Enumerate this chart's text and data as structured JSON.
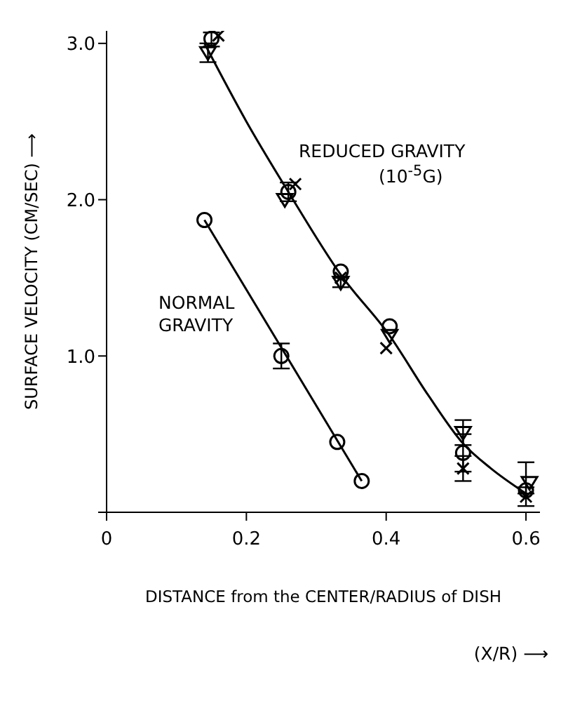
{
  "chart_data": {
    "type": "scatter",
    "xlabel": "DISTANCE from the CENTER/RADIUS of DISH",
    "ylabel": "SURFACE VELOCITY (CM/SEC) ⟶",
    "xlim": [
      0,
      0.62
    ],
    "xticks": [
      0,
      0.2,
      0.4,
      0.6
    ],
    "ylim": [
      0,
      3.08
    ],
    "yticks": [
      {
        "value": 0,
        "label": null
      },
      {
        "value": 1,
        "label": "1.0"
      },
      {
        "value": 2,
        "label": "2.0"
      },
      {
        "value": 3,
        "label": "3.0"
      }
    ],
    "series": [
      {
        "type": "line",
        "color": "#000000",
        "marker": "none",
        "x": [
          0.14,
          0.2,
          0.26,
          0.335,
          0.405,
          0.46,
          0.51,
          0.55,
          0.6
        ],
        "values": [
          3.0,
          2.5,
          2.05,
          1.52,
          1.13,
          0.75,
          0.44,
          0.28,
          0.12
        ]
      },
      {
        "type": "line",
        "color": "#000000",
        "marker": "none",
        "x": [
          0.14,
          0.365
        ],
        "values": [
          1.87,
          0.2
        ]
      },
      {
        "color": "#000000",
        "marker": "circle",
        "x": [
          0.15,
          0.26,
          0.335,
          0.405,
          0.51,
          0.6
        ],
        "values": [
          3.03,
          2.05,
          1.54,
          1.19,
          0.38,
          0.14
        ],
        "errors": [
          [
            2.98,
            3.07
          ],
          0.06,
          null,
          null,
          0.12,
          [
            0.12,
            0.32
          ]
        ]
      },
      {
        "color": "#000000",
        "marker": "triangle",
        "x": [
          0.145,
          0.255,
          0.335,
          0.405,
          0.51,
          0.605
        ],
        "values": [
          2.94,
          2.0,
          1.47,
          1.13,
          0.51,
          0.19
        ],
        "errors": [
          0.06,
          null,
          0.03,
          null,
          0.08,
          null
        ]
      },
      {
        "color": "#000000",
        "marker": "cross",
        "x": [
          0.16,
          0.27,
          0.335,
          0.4,
          0.51,
          0.6
        ],
        "values": [
          3.05,
          2.1,
          1.5,
          1.05,
          0.28,
          0.1
        ],
        "errors": [
          null,
          null,
          null,
          null,
          0.08,
          0.06
        ]
      },
      {
        "color": "#000000",
        "marker": "circle",
        "x": [
          0.14,
          0.25,
          0.33,
          0.365
        ],
        "values": [
          1.87,
          1.0,
          0.45,
          0.2
        ],
        "errors": [
          null,
          0.08,
          null,
          null
        ]
      }
    ],
    "annotations": [
      "REDUCED GRAVITY",
      "(10$^{-5}$G)",
      "NORMAL",
      "GRAVITY",
      "(X/R) ⟶"
    ]
  }
}
